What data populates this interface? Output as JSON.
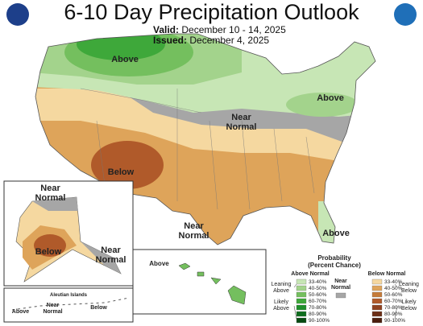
{
  "header": {
    "title": "6-10 Day Precipitation Outlook",
    "valid_label": "Valid:",
    "valid": "December 10 - 14, 2025",
    "issued_label": "Issued:",
    "issued": "December 4, 2025"
  },
  "conus_labels": [
    "Above",
    "Near Normal",
    "Above",
    "Below",
    "Near Normal",
    "Above"
  ],
  "alaska_labels": [
    "Near Normal",
    "Below",
    "Near Normal"
  ],
  "hawaii_label": "Above",
  "aleutian": {
    "title": "Aleutian Islands",
    "labels": [
      "Above",
      "Near Normal",
      "Below"
    ]
  },
  "legend": {
    "title": "Probability (Percent Chance)",
    "near_normal": "Near Normal",
    "near_color": "#a6a6a6",
    "above": {
      "title": "Above Normal",
      "leaning": "Leaning Above",
      "likely": "Likely Above",
      "ranges": [
        {
          "range": "33-40%",
          "color": "#c7e6b5"
        },
        {
          "range": "40-50%",
          "color": "#a3d38c"
        },
        {
          "range": "50-60%",
          "color": "#74bf5e"
        },
        {
          "range": "60-70%",
          "color": "#3ea83a"
        },
        {
          "range": "70-80%",
          "color": "#1e8f2a"
        },
        {
          "range": "80-90%",
          "color": "#0f6e1e"
        },
        {
          "range": "90-100%",
          "color": "#084a12"
        }
      ]
    },
    "below": {
      "title": "Below Normal",
      "leaning": "Leaning Below",
      "likely": "Likely Below",
      "ranges": [
        {
          "range": "33-40%",
          "color": "#f5d8a0"
        },
        {
          "range": "40-50%",
          "color": "#dea45a"
        },
        {
          "range": "50-60%",
          "color": "#c57b3a"
        },
        {
          "range": "60-70%",
          "color": "#b05a2a"
        },
        {
          "range": "70-80%",
          "color": "#8f4220"
        },
        {
          "range": "80-90%",
          "color": "#6b2e16"
        },
        {
          "range": "90-100%",
          "color": "#4a1e0e"
        }
      ]
    }
  }
}
